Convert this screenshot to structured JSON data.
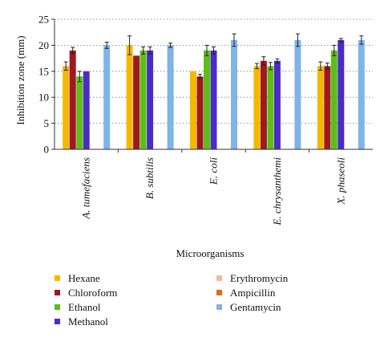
{
  "chart_data": {
    "type": "bar",
    "ylabel": "Inhibition zone (mm)",
    "xlabel": "Microorganisms",
    "ylim": [
      0,
      25
    ],
    "yticks": [
      0,
      5,
      10,
      15,
      20,
      25
    ],
    "grid": "dotted horizontal",
    "legend_position": "bottom",
    "categories": [
      "A. tumefaciens",
      "B. subtilis",
      "E. coli",
      "E. chrysanthemi",
      "X. phaseoli"
    ],
    "series": [
      {
        "name": "Hexane",
        "color": "#f5b800",
        "values": [
          16,
          20,
          15,
          16,
          16
        ],
        "errors": [
          0.8,
          1.8,
          0,
          0.5,
          0.8
        ]
      },
      {
        "name": "Chloroform",
        "color": "#a01820",
        "values": [
          19,
          18,
          14,
          17,
          16
        ],
        "errors": [
          0.6,
          0,
          0.4,
          0.8,
          0.6
        ]
      },
      {
        "name": "Ethanol",
        "color": "#5cbf18",
        "values": [
          14,
          19,
          19,
          16,
          19
        ],
        "errors": [
          1.0,
          0.7,
          1.0,
          0.7,
          1.0
        ]
      },
      {
        "name": "Methanol",
        "color": "#4a2cc4",
        "values": [
          15,
          19,
          19,
          17,
          21
        ],
        "errors": [
          0,
          0.7,
          0.7,
          0.4,
          0.3
        ]
      },
      {
        "name": "Erythromycin",
        "color": "#f4b8a0",
        "values": [
          0,
          0,
          0,
          0,
          0
        ],
        "errors": [
          0,
          0,
          0,
          0,
          0
        ]
      },
      {
        "name": "Ampicillin",
        "color": "#e06a14",
        "values": [
          0,
          0,
          0,
          0,
          0
        ],
        "errors": [
          0,
          0,
          0,
          0,
          0
        ]
      },
      {
        "name": "Gentamycin",
        "color": "#7fb4e6",
        "values": [
          20,
          20,
          21,
          21,
          21
        ],
        "errors": [
          0.6,
          0.4,
          1.2,
          1.2,
          0.8
        ]
      }
    ]
  }
}
